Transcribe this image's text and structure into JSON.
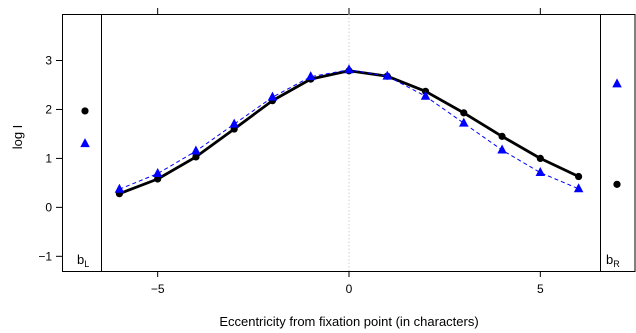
{
  "chart_data": {
    "type": "line",
    "xlabel": "Eccentricity from fixation point (in characters)",
    "ylabel": "log I",
    "xlim": [
      -7.5,
      7.5
    ],
    "ylim": [
      -1.3,
      3.95
    ],
    "x_ticks": [
      -5,
      0,
      5
    ],
    "x_tick_labels": [
      "−5",
      "0",
      "5"
    ],
    "y_ticks": [
      -1,
      0,
      1,
      2,
      3
    ],
    "y_tick_labels": [
      "−1",
      "0",
      "1",
      "2",
      "3"
    ],
    "x": [
      -6,
      -5,
      -4,
      -3,
      -2,
      -1,
      0,
      1,
      2,
      3,
      4,
      5,
      6
    ],
    "series": [
      {
        "marker": "circle",
        "color": "#000000",
        "line": "solid",
        "values": [
          0.28,
          0.58,
          1.03,
          1.6,
          2.18,
          2.62,
          2.79,
          2.68,
          2.37,
          1.93,
          1.45,
          1.0,
          0.63
        ],
        "left_bias": 1.97,
        "right_bias": 0.47
      },
      {
        "marker": "triangle",
        "color": "#0000ff",
        "line": "dashed",
        "values": [
          0.37,
          0.69,
          1.15,
          1.7,
          2.25,
          2.67,
          2.81,
          2.68,
          2.27,
          1.72,
          1.17,
          0.71,
          0.38
        ],
        "left_bias": 1.3,
        "right_bias": 2.52
      }
    ],
    "panel_labels": {
      "left": {
        "base": "b",
        "sub": "L"
      },
      "right": {
        "base": "b",
        "sub": "R"
      }
    },
    "reference_line_x": 0,
    "grid": false
  }
}
